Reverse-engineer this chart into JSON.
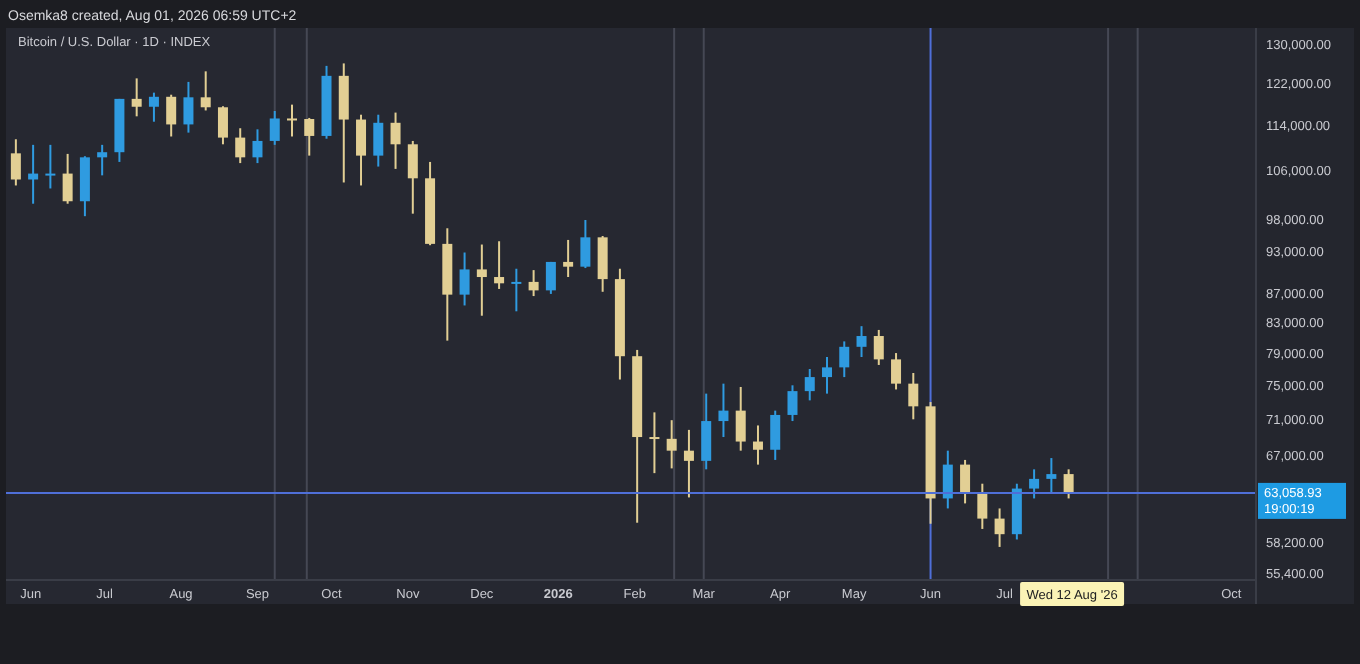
{
  "chart_data": {
    "type": "candlestick",
    "title": "Bitcoin / U.S. Dollar · 1D · INDEX",
    "subtitle": "Osemka8 created, Aug 01, 2026 06:59 UTC+2",
    "x": [
      "2025-05-26",
      "2025-06-02",
      "2025-06-09",
      "2025-06-16",
      "2025-06-23",
      "2025-06-30",
      "2025-07-07",
      "2025-07-14",
      "2025-07-21",
      "2025-07-28",
      "2025-08-04",
      "2025-08-11",
      "2025-08-18",
      "2025-08-25",
      "2025-09-01",
      "2025-09-08",
      "2025-09-15",
      "2025-09-22",
      "2025-09-29",
      "2025-10-06",
      "2025-10-13",
      "2025-10-20",
      "2025-10-27",
      "2025-11-03",
      "2025-11-10",
      "2025-11-17",
      "2025-11-24",
      "2025-12-01",
      "2025-12-08",
      "2025-12-15",
      "2025-12-22",
      "2025-12-29",
      "2026-01-05",
      "2026-01-12",
      "2026-01-19",
      "2026-01-26",
      "2026-02-02",
      "2026-02-09",
      "2026-02-16",
      "2026-02-23",
      "2026-03-02",
      "2026-03-09",
      "2026-03-16",
      "2026-03-23",
      "2026-03-30",
      "2026-04-06",
      "2026-04-13",
      "2026-04-20",
      "2026-04-27",
      "2026-05-04",
      "2026-05-11",
      "2026-05-18",
      "2026-05-25",
      "2026-06-01",
      "2026-06-08",
      "2026-06-15",
      "2026-06-22",
      "2026-06-29",
      "2026-07-06",
      "2026-07-13",
      "2026-07-20",
      "2026-07-27"
    ],
    "ohlc": [
      [
        109000,
        111500,
        103500,
        104500
      ],
      [
        104500,
        110500,
        100500,
        105500
      ],
      [
        105500,
        110500,
        103000,
        105500
      ],
      [
        105500,
        108900,
        100500,
        100900
      ],
      [
        100900,
        108500,
        98500,
        108300
      ],
      [
        108300,
        110500,
        105200,
        109200
      ],
      [
        109200,
        119000,
        107500,
        119000
      ],
      [
        119000,
        123000,
        115700,
        117500
      ],
      [
        117500,
        120200,
        114700,
        119400
      ],
      [
        119400,
        119800,
        112000,
        114200
      ],
      [
        114200,
        122300,
        112700,
        119300
      ],
      [
        119300,
        124400,
        116800,
        117400
      ],
      [
        117400,
        117600,
        110600,
        111800
      ],
      [
        111800,
        113500,
        107300,
        108300
      ],
      [
        108300,
        113300,
        107300,
        111200
      ],
      [
        111200,
        116700,
        110500,
        115300
      ],
      [
        115300,
        117900,
        112000,
        115200
      ],
      [
        115200,
        115400,
        108600,
        112100
      ],
      [
        112100,
        125500,
        111600,
        123500
      ],
      [
        123500,
        126000,
        104000,
        115100
      ],
      [
        115100,
        116000,
        103500,
        108600
      ],
      [
        108600,
        116000,
        106700,
        114500
      ],
      [
        114500,
        116400,
        106300,
        110600
      ],
      [
        110600,
        111200,
        98900,
        104700
      ],
      [
        104700,
        107500,
        94000,
        94200
      ],
      [
        94200,
        96600,
        80600,
        86800
      ],
      [
        86800,
        92900,
        85300,
        90400
      ],
      [
        90400,
        94100,
        83900,
        89300
      ],
      [
        89300,
        94600,
        87600,
        88400
      ],
      [
        88400,
        90500,
        84500,
        88600
      ],
      [
        88600,
        90300,
        86600,
        87400
      ],
      [
        87400,
        91500,
        86900,
        91500
      ],
      [
        91500,
        94800,
        89300,
        90800
      ],
      [
        90800,
        97900,
        90600,
        95200
      ],
      [
        95200,
        95400,
        87200,
        89000
      ],
      [
        89000,
        90500,
        75700,
        78600
      ],
      [
        78600,
        79400,
        60100,
        69000
      ],
      [
        69000,
        71800,
        65100,
        68800
      ],
      [
        68800,
        70900,
        65600,
        67500
      ],
      [
        67500,
        69800,
        62600,
        66400
      ],
      [
        66400,
        74000,
        65500,
        70800
      ],
      [
        70800,
        75200,
        69000,
        72000
      ],
      [
        72000,
        74800,
        67500,
        68500
      ],
      [
        68500,
        70300,
        66000,
        67600
      ],
      [
        67600,
        72000,
        66500,
        71500
      ],
      [
        71500,
        75000,
        70800,
        74300
      ],
      [
        74300,
        77000,
        73200,
        76000
      ],
      [
        76000,
        78500,
        74000,
        77200
      ],
      [
        77200,
        80500,
        76000,
        79800
      ],
      [
        79800,
        82500,
        78500,
        81200
      ],
      [
        81200,
        82000,
        77500,
        78200
      ],
      [
        78200,
        79000,
        74500,
        75200
      ],
      [
        75200,
        76500,
        71000,
        72500
      ],
      [
        72500,
        73000,
        60000,
        62500
      ],
      [
        62500,
        67500,
        61500,
        66000
      ],
      [
        66000,
        66500,
        62000,
        63000
      ],
      [
        63000,
        64000,
        59500,
        60500
      ],
      [
        60500,
        61500,
        57800,
        59000
      ],
      [
        59000,
        64000,
        58500,
        63500
      ],
      [
        63500,
        65500,
        62500,
        64500
      ],
      [
        64500,
        66700,
        63000,
        65000
      ],
      [
        65000,
        65500,
        62500,
        63058.93
      ]
    ],
    "colors": [
      "#e2cf94",
      "#2f9be0",
      "#2f9be0",
      "#e2cf94",
      "#2f9be0",
      "#2f9be0",
      "#2f9be0",
      "#e2cf94",
      "#2f9be0",
      "#e2cf94",
      "#2f9be0",
      "#e2cf94",
      "#e2cf94",
      "#e2cf94",
      "#2f9be0",
      "#2f9be0",
      "#e2cf94",
      "#e2cf94",
      "#2f9be0",
      "#e2cf94",
      "#e2cf94",
      "#2f9be0",
      "#e2cf94",
      "#e2cf94",
      "#e2cf94",
      "#e2cf94",
      "#2f9be0",
      "#e2cf94",
      "#e2cf94",
      "#2f9be0",
      "#e2cf94",
      "#2f9be0",
      "#e2cf94",
      "#2f9be0",
      "#e2cf94",
      "#e2cf94",
      "#e2cf94",
      "#e2cf94",
      "#e2cf94",
      "#e2cf94",
      "#2f9be0",
      "#2f9be0",
      "#e2cf94",
      "#e2cf94",
      "#2f9be0",
      "#2f9be0",
      "#2f9be0",
      "#2f9be0",
      "#2f9be0",
      "#2f9be0",
      "#e2cf94",
      "#e2cf94",
      "#e2cf94",
      "#e2cf94",
      "#2f9be0",
      "#e2cf94",
      "#e2cf94",
      "#e2cf94",
      "#2f9be0",
      "#2f9be0",
      "#2f9be0",
      "#e2cf94"
    ],
    "log": true,
    "grid": false,
    "xlim": [
      "2025-05-22",
      "2026-10-11"
    ],
    "xticks": [
      {
        "value": "2025-06-01",
        "label": "Jun"
      },
      {
        "value": "2025-07-01",
        "label": "Jul"
      },
      {
        "value": "2025-08-01",
        "label": "Aug"
      },
      {
        "value": "2025-09-01",
        "label": "Sep"
      },
      {
        "value": "2025-10-01",
        "label": "Oct"
      },
      {
        "value": "2025-11-01",
        "label": "Nov"
      },
      {
        "value": "2025-12-01",
        "label": "Dec"
      },
      {
        "value": "2026-01-01",
        "label": "2026"
      },
      {
        "value": "2026-02-01",
        "label": "Feb"
      },
      {
        "value": "2026-03-01",
        "label": "Mar"
      },
      {
        "value": "2026-04-01",
        "label": "Apr"
      },
      {
        "value": "2026-05-01",
        "label": "May"
      },
      {
        "value": "2026-06-01",
        "label": "Jun"
      },
      {
        "value": "2026-07-01",
        "label": "Jul"
      },
      {
        "value": "2026-10-01",
        "label": "Oct"
      }
    ],
    "ylim": [
      54800,
      133400
    ],
    "yticks": [
      {
        "value": 55400,
        "label": "55,400.00"
      },
      {
        "value": 58200,
        "label": "58,200.00"
      },
      {
        "value": 67000,
        "label": "67,000.00"
      },
      {
        "value": 71000,
        "label": "71,000.00"
      },
      {
        "value": 75000,
        "label": "75,000.00"
      },
      {
        "value": 79000,
        "label": "79,000.00"
      },
      {
        "value": 83000,
        "label": "83,000.00"
      },
      {
        "value": 87000,
        "label": "87,000.00"
      },
      {
        "value": 93000,
        "label": "93,000.00"
      },
      {
        "value": 98000,
        "label": "98,000.00"
      },
      {
        "value": 106000,
        "label": "106,000.00"
      },
      {
        "value": 114000,
        "label": "114,000.00"
      },
      {
        "value": 122000,
        "label": "122,000.00"
      },
      {
        "value": 130000,
        "label": "130,000.00"
      }
    ],
    "ref_lines": [
      {
        "axis": "y",
        "value": 63058.93,
        "label": "63,058.93",
        "color": "#4f6fd8"
      },
      {
        "axis": "x",
        "value": "2026-06-01",
        "label": null,
        "color": "#4f6fd8"
      },
      {
        "axis": "x",
        "value": "2025-09-08",
        "label": null,
        "color": "#454854"
      },
      {
        "axis": "x",
        "value": "2025-09-21",
        "label": null,
        "color": "#454854"
      },
      {
        "axis": "x",
        "value": "2026-02-17",
        "label": null,
        "color": "#454854"
      },
      {
        "axis": "x",
        "value": "2026-03-01",
        "label": null,
        "color": "#454854"
      },
      {
        "axis": "x",
        "value": "2026-08-24",
        "label": null,
        "color": "#454854"
      },
      {
        "axis": "x",
        "value": "2026-08-12",
        "label": "Wed 12 Aug '26",
        "color": "#454854"
      }
    ],
    "annotations": [
      "19:00:19"
    ]
  }
}
